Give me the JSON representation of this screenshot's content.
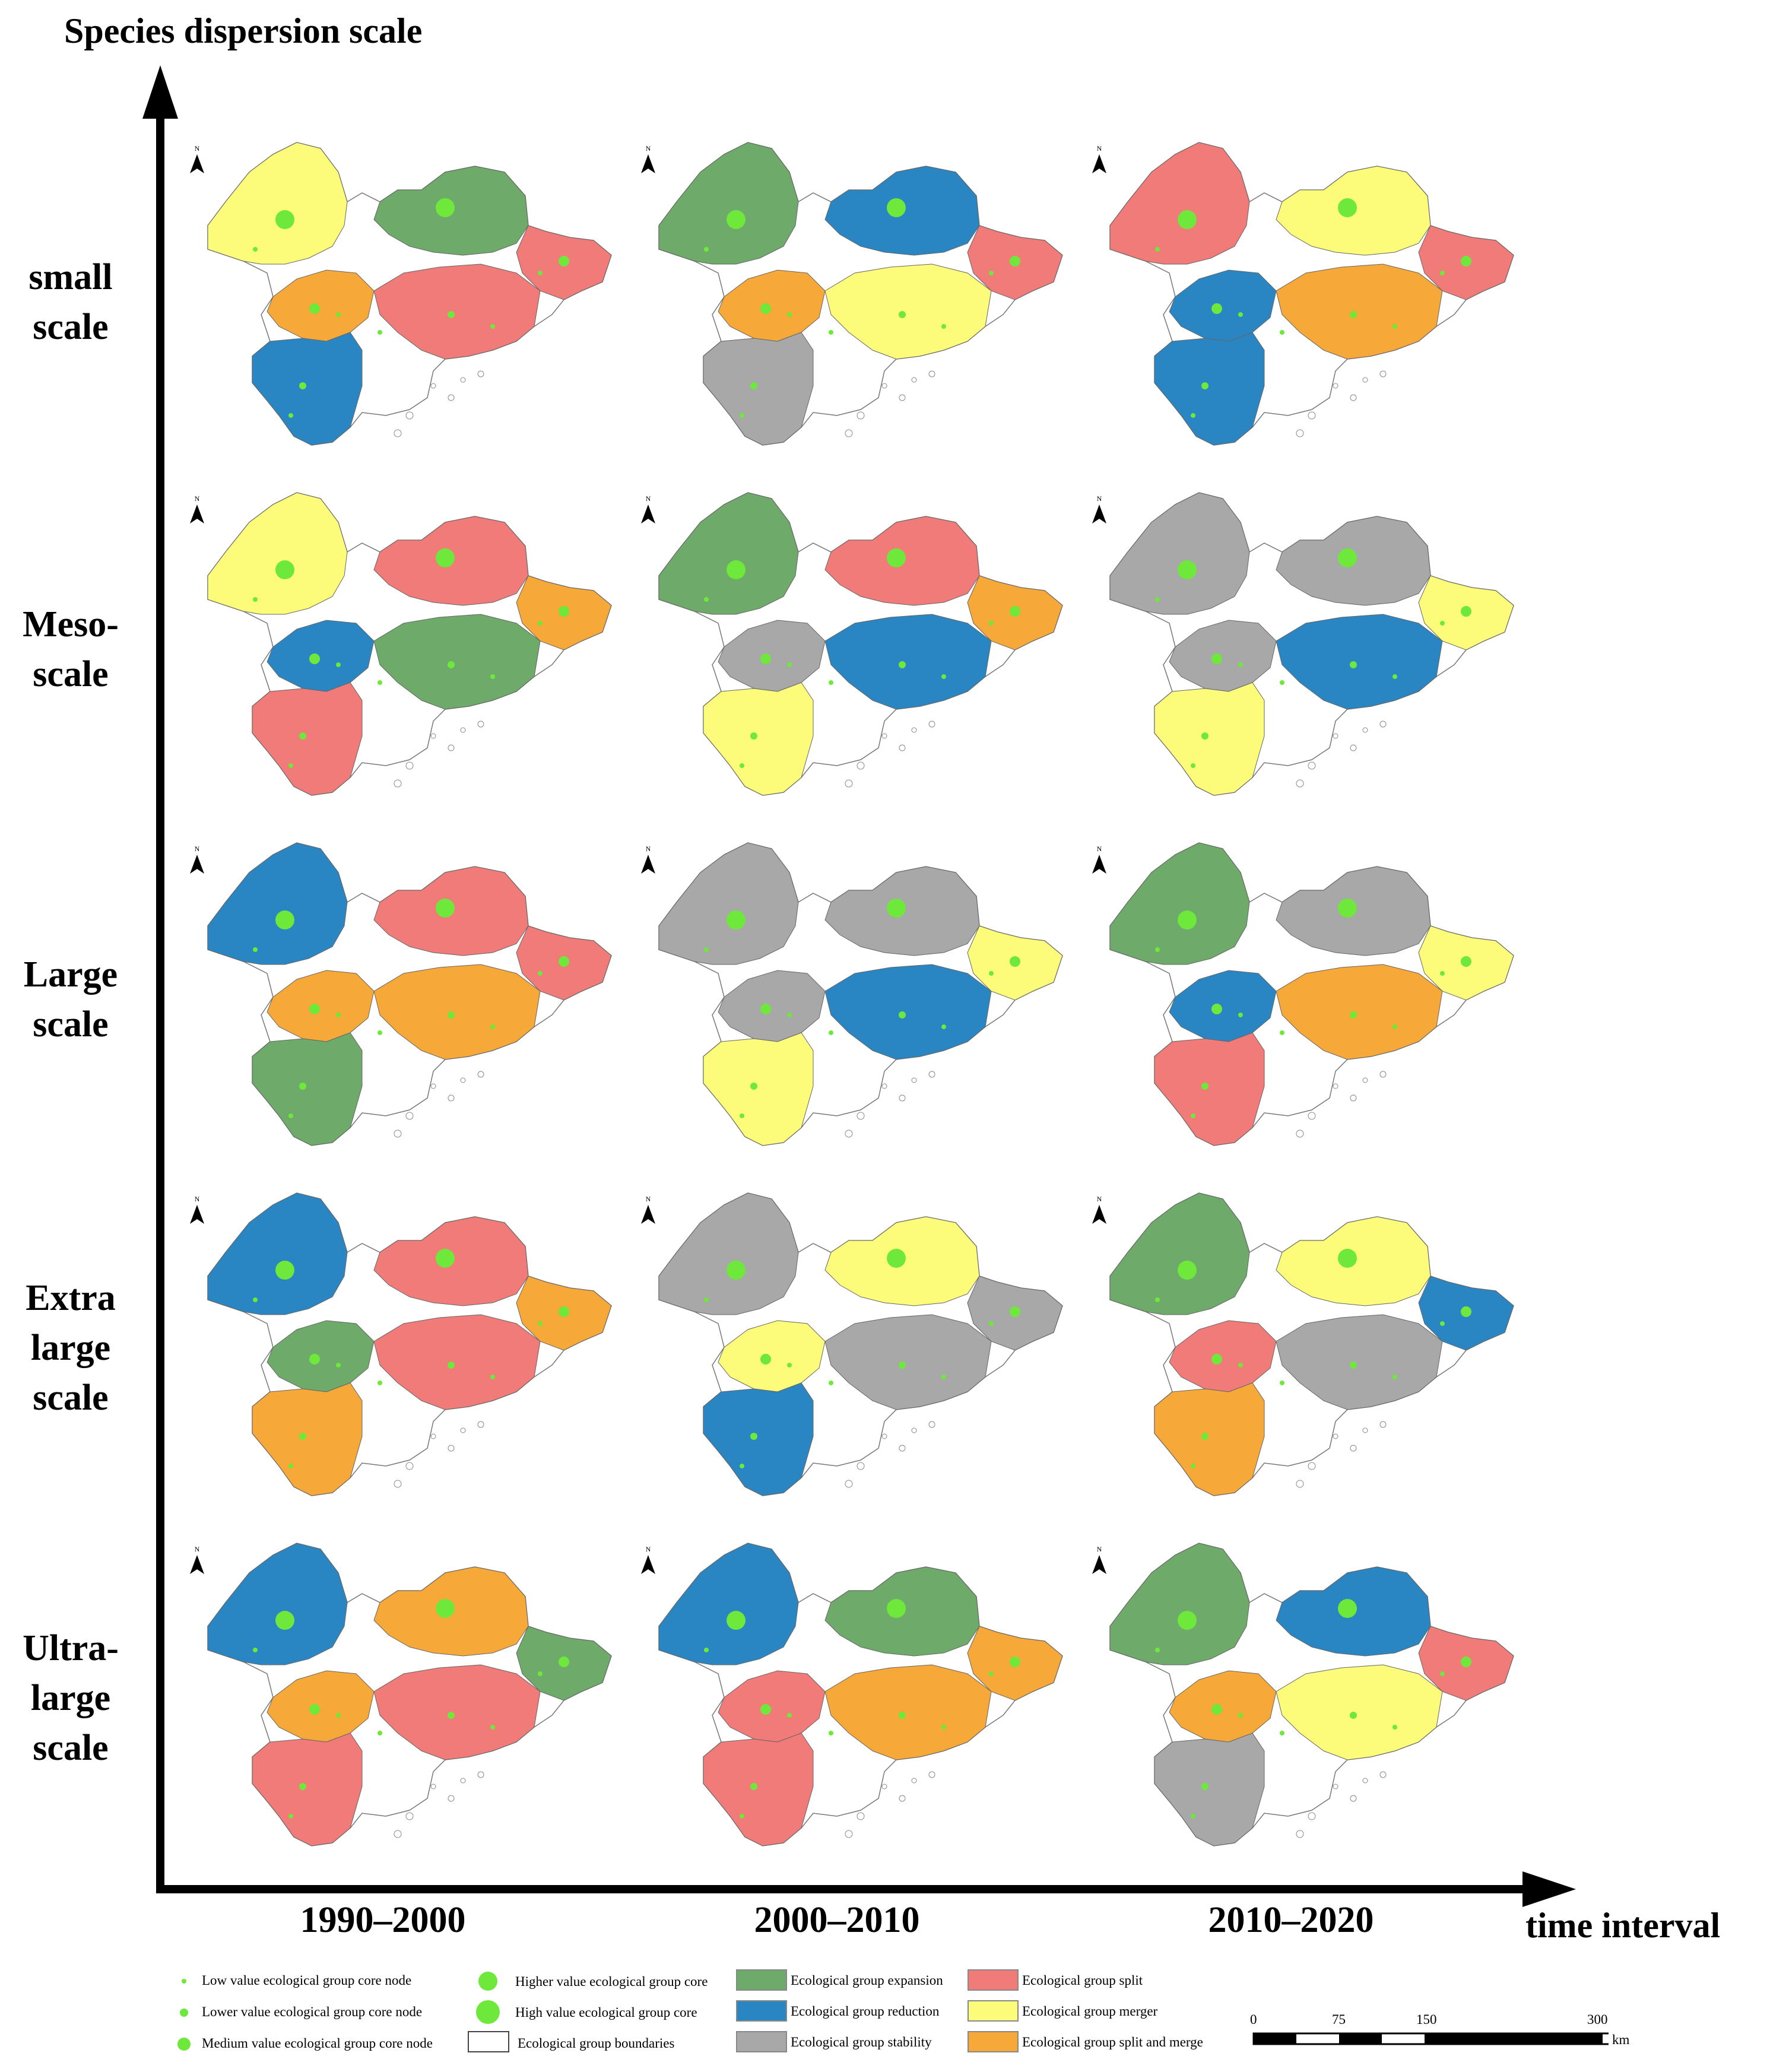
{
  "axes": {
    "y_title": "Species dispersion scale",
    "x_title": "time interval"
  },
  "rows": [
    {
      "label": "small\nscale"
    },
    {
      "label": "Meso-\nscale"
    },
    {
      "label": "Large\nscale"
    },
    {
      "label": "Extra\nlarge\nscale"
    },
    {
      "label": "Ultra-\nlarge\nscale"
    }
  ],
  "columns": [
    "1990–2000",
    "2000–2010",
    "2010–2020"
  ],
  "north_label": "N",
  "colors": {
    "expansion": "#6eaa6a",
    "reduction": "#2a86c2",
    "stability": "#a8a8a8",
    "split": "#f07b78",
    "merger": "#fcfc7a",
    "split_merge": "#f6a838",
    "boundaries": "#ffffff",
    "node": "#6ee83a"
  },
  "maps": [
    [
      "merger",
      "expansion",
      "split"
    ],
    [
      "merger",
      "expansion",
      "stability"
    ],
    [
      "reduction",
      "stability",
      "expansion"
    ],
    [
      "reduction",
      "stability",
      "expansion"
    ],
    [
      "reduction",
      "reduction",
      "expansion"
    ]
  ],
  "legend": {
    "nodes": [
      {
        "label": "Low value ecological group core node",
        "size": "low"
      },
      {
        "label": "Lower value ecological group core node",
        "size": "lower"
      },
      {
        "label": "Medium value ecological group core node",
        "size": "medium"
      },
      {
        "label": "Higher value ecological group core",
        "size": "higher"
      },
      {
        "label": "High value ecological group core",
        "size": "high"
      }
    ],
    "boundaries": "Ecological group boundaries",
    "types": [
      {
        "label": "Ecological group expansion",
        "key": "expansion"
      },
      {
        "label": "Ecological group reduction",
        "key": "reduction"
      },
      {
        "label": "Ecological group stability",
        "key": "stability"
      },
      {
        "label": "Ecological group split",
        "key": "split"
      },
      {
        "label": "Ecological group merger",
        "key": "merger"
      },
      {
        "label": "Ecological group split and merge",
        "key": "split_merge"
      }
    ]
  },
  "scalebar": {
    "ticks": [
      "0",
      "75",
      "150",
      "300"
    ],
    "unit": "km"
  }
}
